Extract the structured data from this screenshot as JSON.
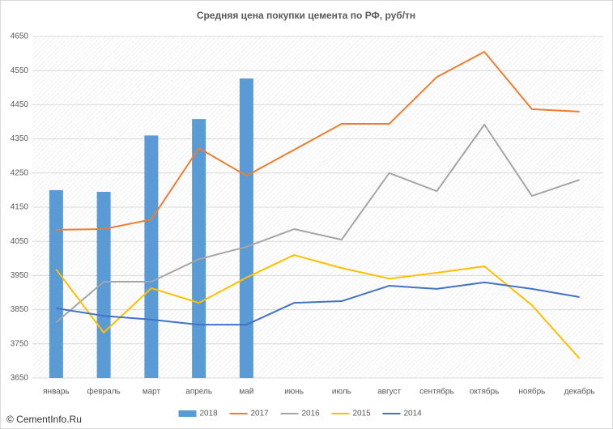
{
  "chart_data": {
    "type": "combo",
    "title": "Средняя цена покупки цемента по РФ, руб/тн",
    "watermark": "© CementInfo.Ru",
    "categories": [
      "январь",
      "февраль",
      "март",
      "апрель",
      "май",
      "июнь",
      "июль",
      "август",
      "сентябрь",
      "октябрь",
      "ноябрь",
      "декабрь"
    ],
    "series": [
      {
        "name": "2018",
        "type": "bar",
        "color": "#5b9bd5",
        "values": [
          4200,
          4195,
          4360,
          4408,
          4527,
          null,
          null,
          null,
          null,
          null,
          null,
          null
        ]
      },
      {
        "name": "2017",
        "type": "line",
        "color": "#ed7d31",
        "values": [
          4084,
          4086,
          4114,
          4323,
          4242,
          4318,
          4394,
          4394,
          4531,
          4605,
          4437,
          4430
        ]
      },
      {
        "name": "2016",
        "type": "line",
        "color": "#a5a5a5",
        "values": [
          3813,
          3932,
          3932,
          3998,
          4034,
          4086,
          4055,
          4250,
          4197,
          4392,
          4183,
          4230
        ]
      },
      {
        "name": "2015",
        "type": "line",
        "color": "#ffc000",
        "values": [
          3968,
          3783,
          3913,
          3870,
          3944,
          4010,
          3972,
          3941,
          3958,
          3977,
          3863,
          3707
        ]
      },
      {
        "name": "2014",
        "type": "line",
        "color": "#4472c4",
        "values": [
          3854,
          3832,
          3821,
          3806,
          3806,
          3870,
          3875,
          3920,
          3911,
          3930,
          3911,
          3887
        ]
      }
    ],
    "ylim": [
      3650,
      4650
    ],
    "yticks": [
      3650,
      3750,
      3850,
      3950,
      4050,
      4150,
      4250,
      4350,
      4450,
      4550,
      4650
    ],
    "grid": true,
    "legend": "bottom"
  }
}
